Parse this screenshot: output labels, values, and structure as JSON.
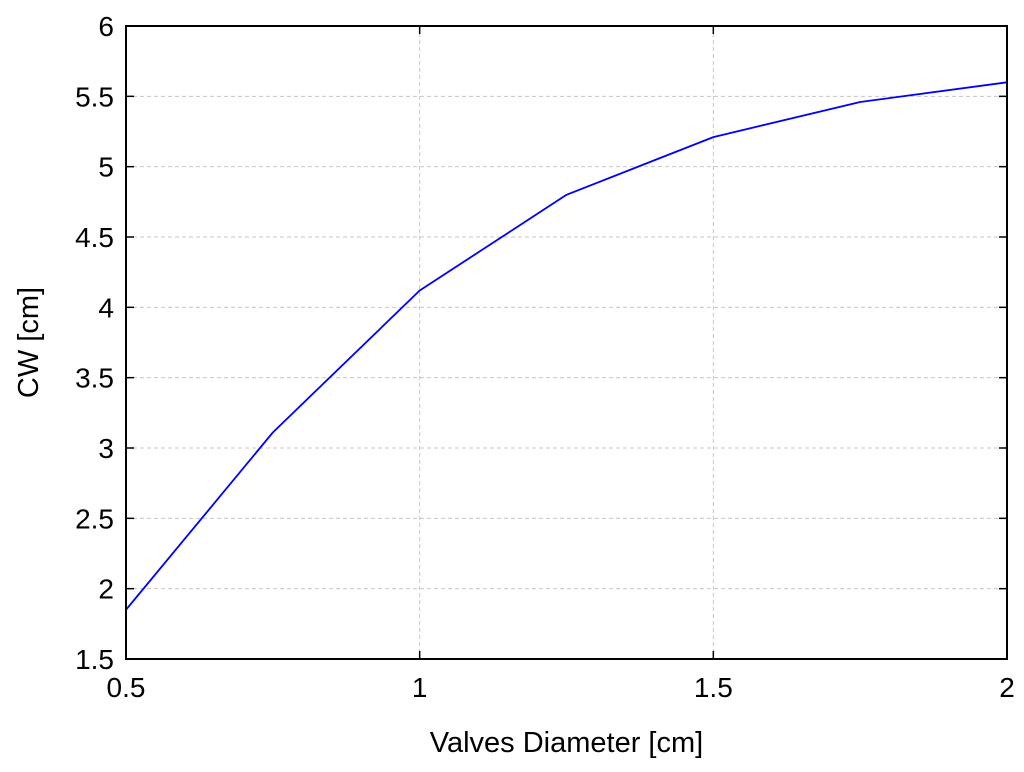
{
  "chart_data": {
    "type": "line",
    "title": "",
    "xlabel": "Valves Diameter [cm]",
    "ylabel": "CW [cm]",
    "xlim": [
      0.5,
      2
    ],
    "ylim": [
      1.5,
      6
    ],
    "xticks": [
      0.5,
      1,
      1.5,
      2
    ],
    "xtick_labels": [
      "0.5",
      "1",
      "1.5",
      "2"
    ],
    "yticks": [
      1.5,
      2,
      2.5,
      3,
      3.5,
      4,
      4.5,
      5,
      5.5,
      6
    ],
    "ytick_labels": [
      "1.5",
      "2",
      "2.5",
      "3",
      "3.5",
      "4",
      "4.5",
      "5",
      "5.5",
      "6"
    ],
    "grid": true,
    "legend": "none",
    "series": [
      {
        "color": "#0000ff",
        "x": [
          0.5,
          0.75,
          1.0,
          1.25,
          1.5,
          1.75,
          2.0
        ],
        "y": [
          1.85,
          3.11,
          4.12,
          4.8,
          5.21,
          5.46,
          5.6
        ]
      }
    ]
  }
}
